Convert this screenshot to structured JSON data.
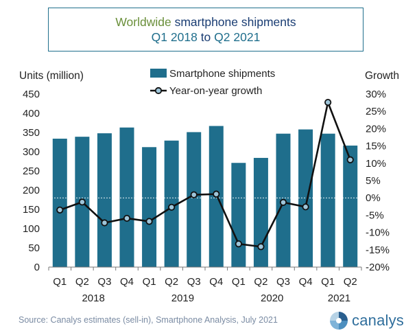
{
  "title": {
    "part1": "Worldwide",
    "part2": "smartphone shipments",
    "q_from": "Q1 2018",
    "to": "to",
    "q_to": "Q2 2021"
  },
  "source": "Source: Canalys estimates (sell-in), Smartphone Analysis, July 2021",
  "brand": "canalys",
  "colors": {
    "bar": "#1f6e8c",
    "line": "#111111",
    "marker_fill": "#9ec5d9",
    "title_border": "#1f6e8c"
  },
  "chart_data": {
    "type": "bar+line",
    "quarters": [
      "Q1",
      "Q2",
      "Q3",
      "Q4",
      "Q1",
      "Q2",
      "Q3",
      "Q4",
      "Q1",
      "Q2",
      "Q3",
      "Q4",
      "Q1",
      "Q2"
    ],
    "years": [
      "2018",
      "2019",
      "2020",
      "2021"
    ],
    "series": [
      {
        "name": "Smartphone shipments",
        "axis": "left",
        "values": [
          334,
          339,
          348,
          363,
          312,
          329,
          351,
          367,
          271,
          284,
          347,
          358,
          347,
          316
        ]
      },
      {
        "name": "Year-on-year growth",
        "axis": "right",
        "values": [
          -3.5,
          -1.2,
          -7.2,
          -5.9,
          -6.8,
          -2.7,
          0.9,
          1.1,
          -13.3,
          -14.1,
          -1.3,
          -2.6,
          27.6,
          11.0
        ]
      }
    ],
    "left_axis": {
      "label": "Units (million)",
      "min": 0,
      "max": 450,
      "ticks": [
        "0",
        "50",
        "100",
        "150",
        "200",
        "250",
        "300",
        "350",
        "400",
        "450"
      ]
    },
    "right_axis": {
      "label": "Growth",
      "min": -20,
      "max": 30,
      "ticks": [
        "-20%",
        "-15%",
        "-10%",
        "-5%",
        "0%",
        "5%",
        "10%",
        "15%",
        "20%",
        "25%",
        "30%"
      ]
    },
    "legend": [
      "Smartphone shipments",
      "Year-on-year growth"
    ]
  }
}
